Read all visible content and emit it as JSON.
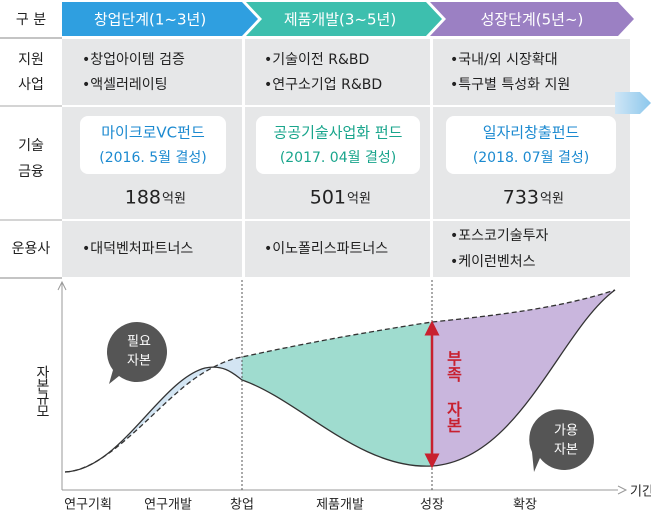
{
  "header": {
    "label": "구 분",
    "stages": [
      "창업단계(1~3년)",
      "제품개발(3~5년)",
      "성장단계(5년~)"
    ]
  },
  "rows": [
    {
      "label": [
        "지원",
        "사업"
      ],
      "cells": [
        [
          "•창업아이템 검증",
          "•액셀러레이팅"
        ],
        [
          "•기술이전 R&BD",
          "•연구소기업 R&BD"
        ],
        [
          "•국내/외 시장확대",
          "•특구별 특성화 지원"
        ]
      ]
    },
    {
      "label": [
        "기술",
        "금융"
      ],
      "funds": [
        {
          "name": "마이크로VC펀드",
          "date": "(2016. 5월 결성)",
          "amount": 188,
          "unit": "억원"
        },
        {
          "name": "공공기술사업화 펀드",
          "date": "(2017. 04월 결성)",
          "amount": 501,
          "unit": "억원"
        },
        {
          "name": "일자리창출펀드",
          "date": "(2018. 07월 결성)",
          "amount": 733,
          "unit": "억원"
        }
      ]
    },
    {
      "label": [
        "운용사"
      ],
      "cells": [
        [
          "•대덕벤처파트너스"
        ],
        [
          "•이노폴리스파트너스"
        ],
        [
          "•포스코기술투자",
          "•케이런벤처스"
        ]
      ]
    }
  ],
  "chart": {
    "y_axis": "자본규모",
    "x_axis": "기간",
    "x_labels": [
      "연구기획",
      "연구개발",
      "창업",
      "제품개발",
      "성장",
      "확장"
    ],
    "needed": [
      "필요",
      "자본"
    ],
    "available": [
      "가용",
      "자본"
    ],
    "gap": "부족 자본"
  }
}
